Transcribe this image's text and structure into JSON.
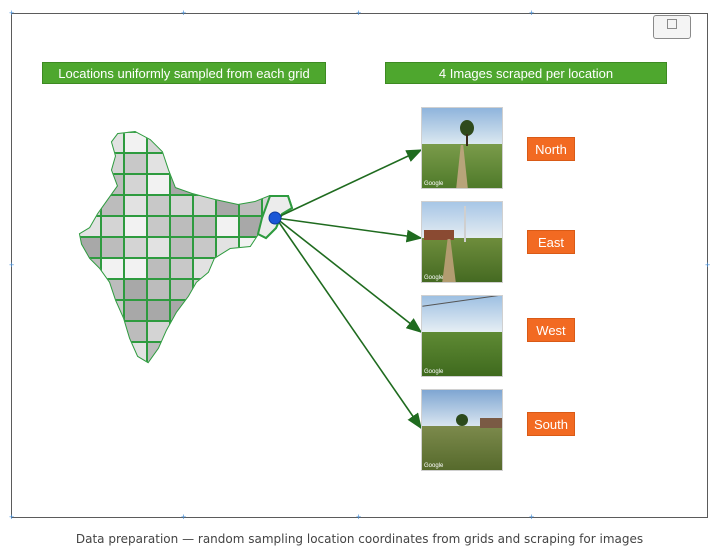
{
  "header_left": "Locations uniformly sampled from each grid",
  "header_right": "4 Images scraped per location",
  "directions": [
    {
      "label": "North"
    },
    {
      "label": "East"
    },
    {
      "label": "West"
    },
    {
      "label": "South"
    }
  ],
  "thumbnail_watermark": "Google",
  "caption": "Data preparation — random sampling location coordinates from grids and scraping for images",
  "colors": {
    "header_bg": "#4ea72e",
    "direction_bg": "#f26a22",
    "arrow": "#1f6b1f",
    "grid_line": "#2e9b3f",
    "location_dot": "#1a56d6"
  }
}
